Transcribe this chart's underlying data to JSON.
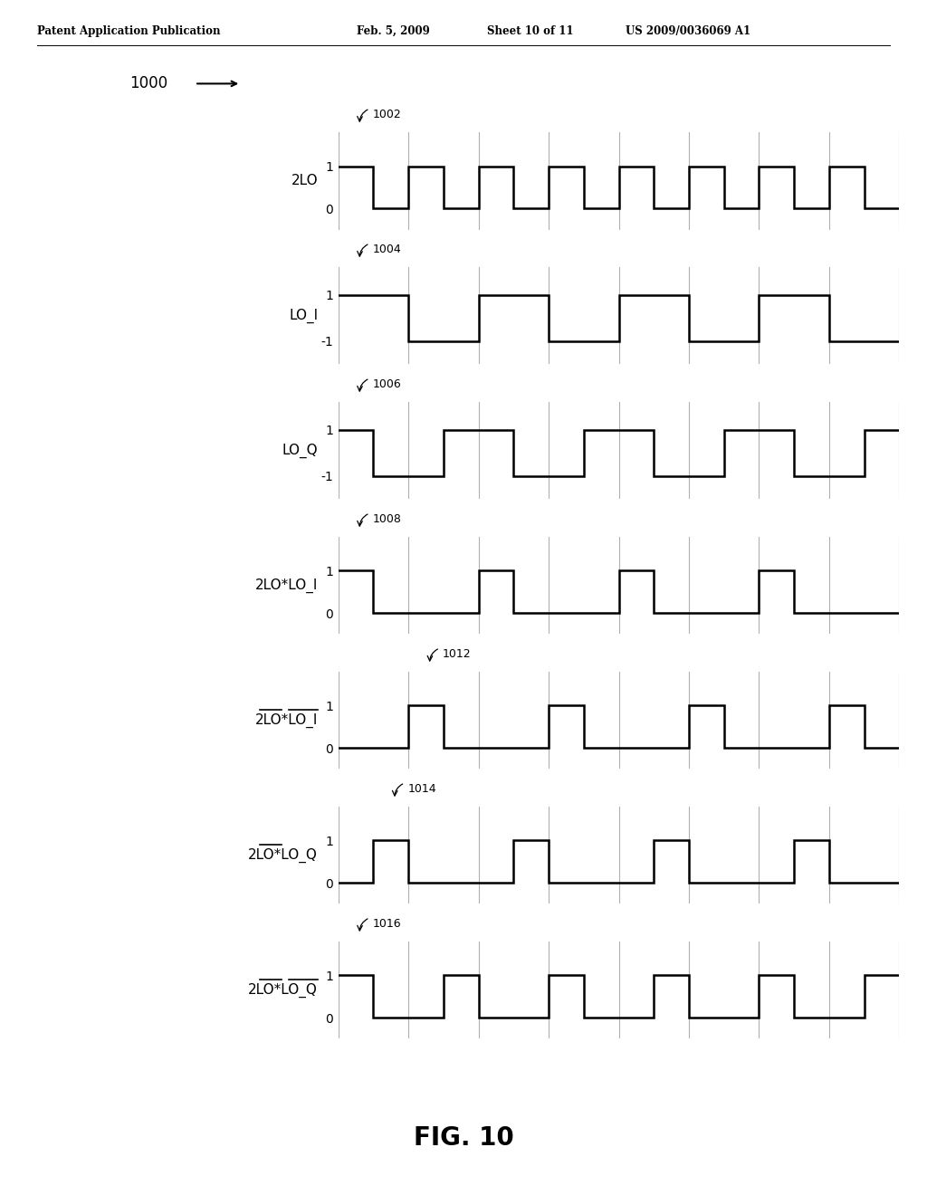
{
  "background_color": "#ffffff",
  "waveform_color": "#000000",
  "grid_line_color": "#b0b0b0",
  "header_left": "Patent Application Publication",
  "header_date": "Feb. 5, 2009",
  "header_sheet": "Sheet 10 of 11",
  "header_patent": "US 2009/0036069 A1",
  "fig_label": "FIG. 10",
  "diagram_ref": "1000",
  "num_steps": 16,
  "grid_x": [
    0,
    2,
    4,
    6,
    8,
    10,
    12,
    14,
    16
  ],
  "signals": [
    {
      "name": "2LO",
      "label_id": "1002",
      "yticks": [
        0,
        1
      ],
      "ymin": -0.5,
      "ymax": 1.8,
      "steps": [
        1,
        0,
        1,
        0,
        1,
        0,
        1,
        0,
        1,
        0,
        1,
        0,
        1,
        0,
        1,
        0
      ],
      "overline_2lo": false,
      "overline_lo": false,
      "lo_part": ""
    },
    {
      "name": "LO_I",
      "label_id": "1004",
      "yticks": [
        -1,
        1
      ],
      "ymin": -2.0,
      "ymax": 2.2,
      "steps": [
        1,
        1,
        -1,
        -1,
        1,
        1,
        -1,
        -1,
        1,
        1,
        -1,
        -1,
        1,
        1,
        -1,
        -1
      ],
      "overline_2lo": false,
      "overline_lo": false,
      "lo_part": ""
    },
    {
      "name": "LO_Q",
      "label_id": "1006",
      "yticks": [
        -1,
        1
      ],
      "ymin": -2.0,
      "ymax": 2.2,
      "steps": [
        1,
        -1,
        -1,
        1,
        1,
        -1,
        -1,
        1,
        1,
        -1,
        -1,
        1,
        1,
        -1,
        -1,
        1
      ],
      "overline_2lo": false,
      "overline_lo": false,
      "lo_part": ""
    },
    {
      "name": "2LO*LO_I",
      "label_id": "1008",
      "yticks": [
        0,
        1
      ],
      "ymin": -0.5,
      "ymax": 1.8,
      "steps": [
        1,
        0,
        0,
        0,
        1,
        0,
        0,
        0,
        1,
        0,
        0,
        0,
        1,
        0,
        0,
        0
      ],
      "overline_2lo": false,
      "overline_lo": false,
      "lo_part": ""
    },
    {
      "name": "2LO*LO_I",
      "label_id": "1012",
      "yticks": [
        0,
        1
      ],
      "ymin": -0.5,
      "ymax": 1.8,
      "steps": [
        0,
        0,
        1,
        0,
        0,
        0,
        1,
        0,
        0,
        0,
        1,
        0,
        0,
        0,
        1,
        0
      ],
      "overline_2lo": true,
      "overline_lo": true,
      "lo_part": "LO_I"
    },
    {
      "name": "2LO*LO_Q",
      "label_id": "1014",
      "yticks": [
        0,
        1
      ],
      "ymin": -0.5,
      "ymax": 1.8,
      "steps": [
        0,
        1,
        0,
        0,
        0,
        1,
        0,
        0,
        0,
        1,
        0,
        0,
        0,
        1,
        0,
        0
      ],
      "overline_2lo": true,
      "overline_lo": false,
      "lo_part": "LO_Q"
    },
    {
      "name": "2LO*LO_Q",
      "label_id": "1016",
      "yticks": [
        0,
        1
      ],
      "ymin": -0.5,
      "ymax": 1.8,
      "steps": [
        1,
        0,
        0,
        1,
        0,
        0,
        1,
        0,
        0,
        1,
        0,
        0,
        1,
        0,
        0,
        1
      ],
      "overline_2lo": true,
      "overline_lo": true,
      "lo_part": "LO_Q"
    }
  ]
}
